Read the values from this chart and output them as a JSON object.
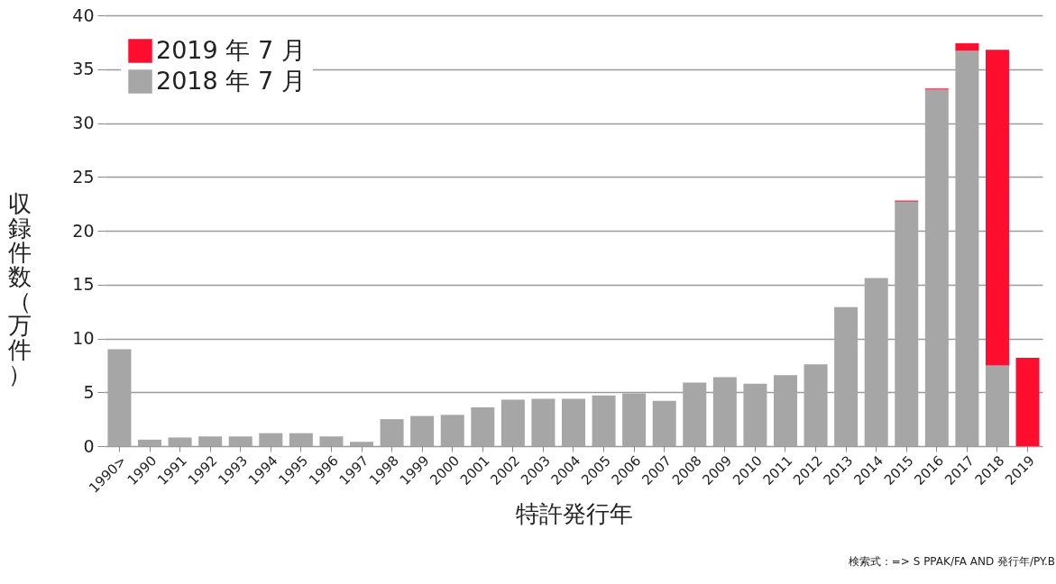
{
  "chart_data": {
    "type": "bar",
    "stacked": true,
    "xlabel": "特許発行年",
    "ylabel": "収録件数（万件）",
    "categories": [
      "1990>",
      "1990",
      "1991",
      "1992",
      "1993",
      "1994",
      "1995",
      "1996",
      "1997",
      "1998",
      "1999",
      "2000",
      "2001",
      "2002",
      "2003",
      "2004",
      "2005",
      "2006",
      "2007",
      "2008",
      "2009",
      "2010",
      "2011",
      "2012",
      "2013",
      "2014",
      "2015",
      "2016",
      "2017",
      "2018",
      "2019"
    ],
    "series": [
      {
        "name": "2018 年 7 月",
        "color": "#a6a6a6",
        "values": [
          9.0,
          0.6,
          0.8,
          0.9,
          0.9,
          1.2,
          1.2,
          0.9,
          0.4,
          2.5,
          2.8,
          2.9,
          3.6,
          4.3,
          4.4,
          4.4,
          4.7,
          4.9,
          4.2,
          5.9,
          6.4,
          5.8,
          6.6,
          7.6,
          12.9,
          15.6,
          22.7,
          33.1,
          36.7,
          7.5,
          0
        ]
      },
      {
        "name": "2019 年 7 月",
        "color": "#ff0d2e",
        "values": [
          0,
          0,
          0,
          0,
          0,
          0,
          0,
          0,
          0,
          0,
          0,
          0,
          0,
          0,
          0,
          0,
          0,
          0,
          0,
          0,
          0,
          0,
          0,
          0,
          0,
          0,
          0.1,
          0.1,
          0.7,
          29.3,
          8.2
        ]
      }
    ],
    "ylim": [
      0,
      40
    ],
    "yticks": [
      0,
      5,
      10,
      15,
      20,
      25,
      30,
      35,
      40
    ],
    "grid": "y",
    "legend": "top left",
    "annotations": [
      "検索式：=> S PPAK/FA AND  発行年/PY.B"
    ]
  }
}
